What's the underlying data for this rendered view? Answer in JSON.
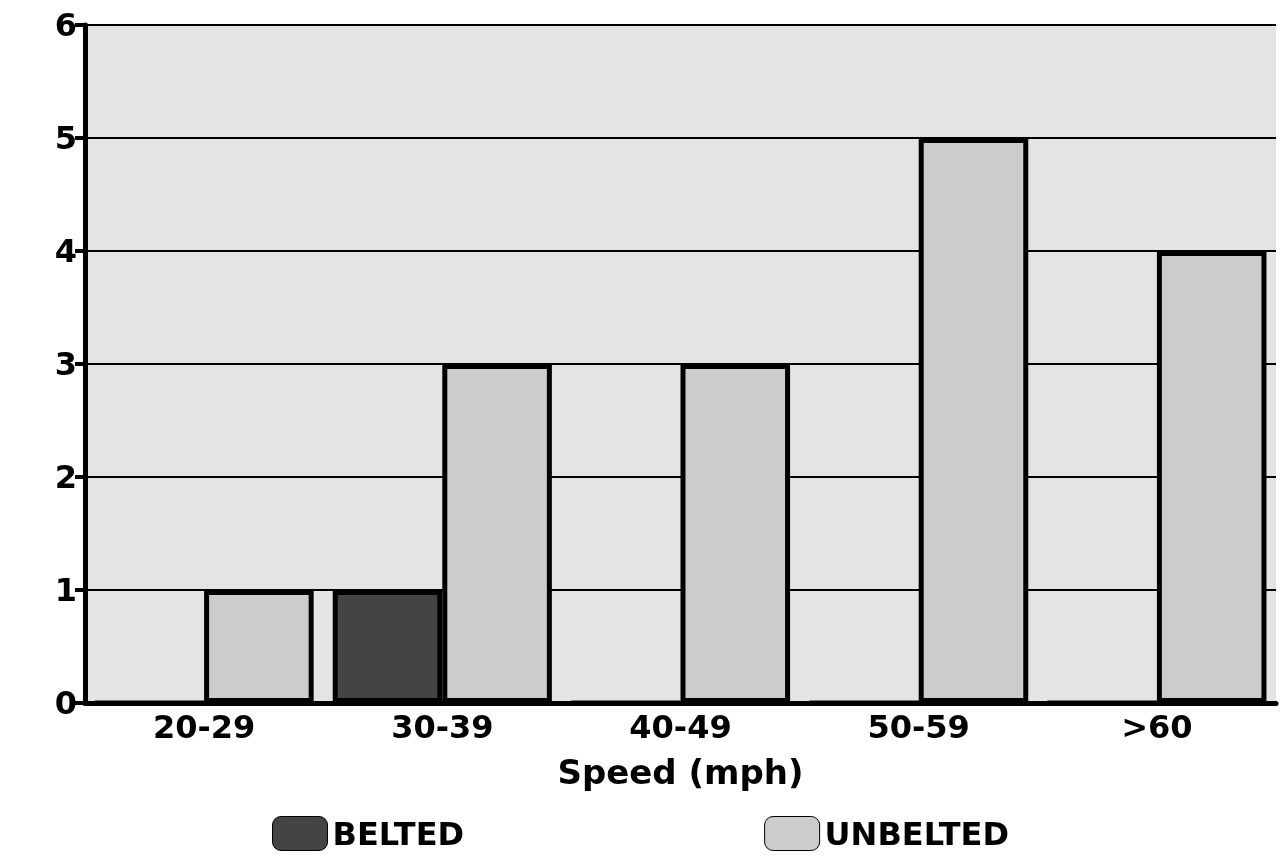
{
  "chart_data": {
    "type": "bar",
    "xlabel": "Speed (mph)",
    "categories": [
      "20-29",
      "30-39",
      "40-49",
      "50-59",
      ">60"
    ],
    "series": [
      {
        "name": "BELTED",
        "color": "#444444",
        "values": [
          0,
          1,
          0,
          0,
          0
        ]
      },
      {
        "name": "UNBELTED",
        "color": "#cccccc",
        "values": [
          1,
          3,
          3,
          5,
          4
        ]
      }
    ],
    "ylim": [
      0,
      6
    ],
    "yticks": [
      0,
      1,
      2,
      3,
      4,
      5,
      6
    ],
    "grid": "y",
    "legend": "bottom"
  }
}
